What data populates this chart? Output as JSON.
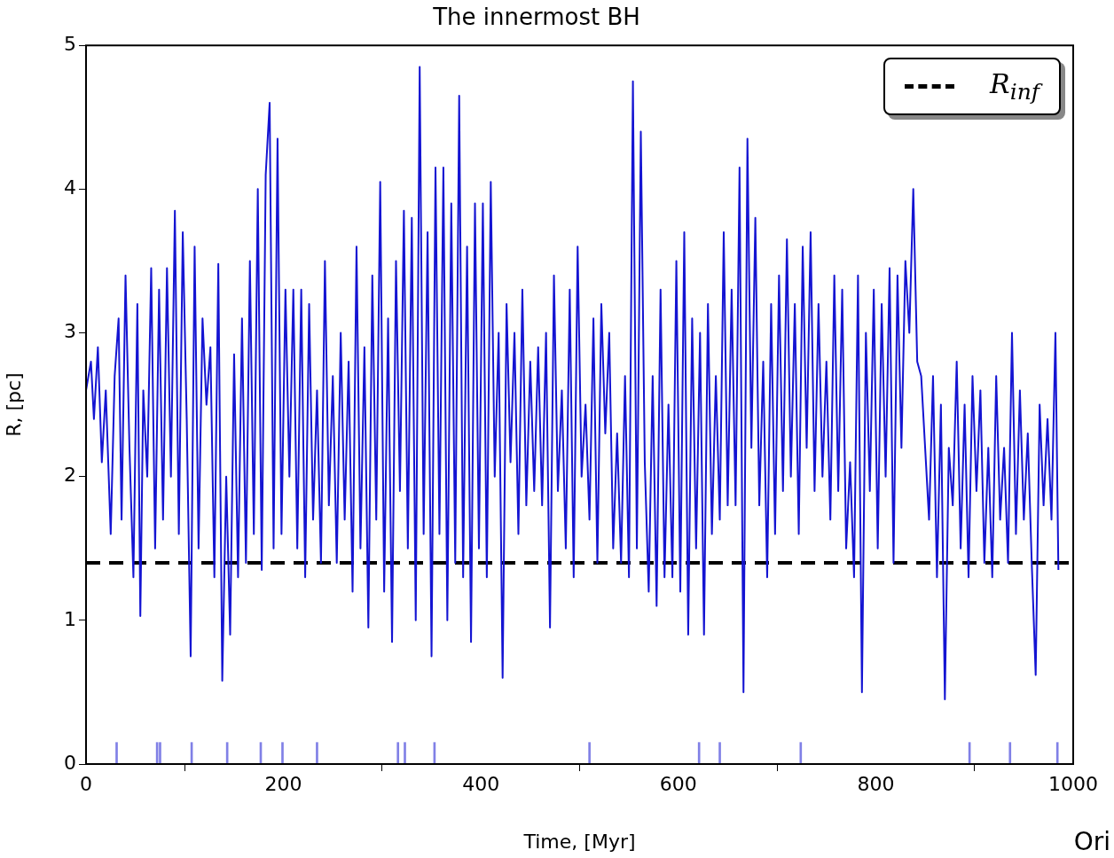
{
  "chart_data": {
    "type": "line",
    "title": "The innermost BH",
    "xlabel": "Time, [Myr]",
    "ylabel": "R, [pc]",
    "xlim": [
      0,
      1000
    ],
    "xticks": [
      0,
      200,
      400,
      600,
      800,
      1000
    ],
    "ylim": [
      0,
      5
    ],
    "yticks": [
      0,
      1,
      2,
      3,
      4,
      5
    ],
    "marker": "none",
    "line_style": "solid",
    "legend": "top right",
    "annotations": [
      "Ori"
    ],
    "ref_lines": [
      {
        "axis": "y",
        "value": 1.4,
        "label": "R$_{inf}$",
        "color": "#000000",
        "line_style": "dashed"
      }
    ],
    "series": [
      {
        "color": "#1414d2",
        "x": [
          0,
          5,
          8,
          12,
          16,
          20,
          25,
          29,
          33,
          36,
          40,
          44,
          48,
          52,
          55,
          58,
          62,
          66,
          70,
          74,
          78,
          82,
          86,
          90,
          94,
          98,
          102,
          106,
          110,
          114,
          118,
          122,
          126,
          130,
          134,
          138,
          142,
          146,
          150,
          154,
          158,
          162,
          166,
          170,
          174,
          178,
          182,
          186,
          190,
          194,
          198,
          202,
          206,
          210,
          214,
          218,
          222,
          226,
          230,
          234,
          238,
          242,
          246,
          250,
          254,
          258,
          262,
          266,
          270,
          274,
          278,
          282,
          286,
          290,
          294,
          298,
          302,
          306,
          310,
          314,
          318,
          322,
          326,
          330,
          334,
          338,
          342,
          346,
          350,
          354,
          358,
          362,
          366,
          370,
          374,
          378,
          382,
          386,
          390,
          394,
          398,
          402,
          406,
          410,
          414,
          418,
          422,
          426,
          430,
          434,
          438,
          442,
          446,
          450,
          454,
          458,
          462,
          466,
          470,
          474,
          478,
          482,
          486,
          490,
          494,
          498,
          502,
          506,
          510,
          514,
          518,
          522,
          526,
          530,
          534,
          538,
          542,
          546,
          550,
          554,
          558,
          562,
          566,
          570,
          574,
          578,
          582,
          586,
          590,
          594,
          598,
          602,
          606,
          610,
          614,
          618,
          622,
          626,
          630,
          634,
          638,
          642,
          646,
          650,
          654,
          658,
          662,
          666,
          670,
          674,
          678,
          682,
          686,
          690,
          694,
          698,
          702,
          706,
          710,
          714,
          718,
          722,
          726,
          730,
          734,
          738,
          742,
          746,
          750,
          754,
          758,
          762,
          766,
          770,
          774,
          778,
          782,
          786,
          790,
          794,
          798,
          802,
          806,
          810,
          814,
          818,
          822,
          826,
          830,
          834,
          838,
          842,
          846,
          850,
          854,
          858,
          862,
          866,
          870,
          874,
          878,
          882,
          886,
          890,
          894,
          898,
          902,
          906,
          910,
          914,
          918,
          922,
          926,
          930,
          934,
          938,
          942,
          946,
          950,
          954,
          958,
          962,
          966,
          970,
          974,
          978,
          982,
          985
        ],
        "values": [
          2.6,
          2.8,
          2.4,
          2.9,
          2.1,
          2.6,
          1.6,
          2.7,
          3.1,
          1.7,
          3.4,
          2.2,
          1.3,
          3.2,
          1.03,
          2.6,
          2.0,
          3.45,
          1.5,
          3.3,
          1.7,
          3.45,
          2.0,
          3.85,
          1.6,
          3.7,
          2.4,
          0.75,
          3.6,
          1.5,
          3.1,
          2.5,
          2.9,
          1.3,
          3.48,
          0.58,
          2.0,
          0.9,
          2.85,
          1.3,
          3.1,
          1.4,
          3.5,
          1.6,
          4.0,
          1.35,
          4.1,
          4.6,
          1.5,
          4.35,
          1.6,
          3.3,
          2.0,
          3.3,
          1.5,
          3.3,
          1.3,
          3.2,
          1.7,
          2.6,
          1.4,
          3.5,
          1.8,
          2.7,
          1.4,
          3.0,
          1.7,
          2.8,
          1.2,
          3.6,
          1.5,
          2.9,
          0.95,
          3.4,
          1.7,
          4.05,
          1.2,
          3.1,
          0.85,
          3.5,
          1.9,
          3.85,
          1.5,
          3.8,
          1.0,
          4.85,
          1.6,
          3.7,
          0.75,
          4.15,
          1.6,
          4.15,
          1.0,
          3.9,
          1.4,
          4.65,
          1.3,
          3.6,
          0.85,
          3.9,
          1.5,
          3.9,
          1.3,
          4.05,
          2.0,
          3.0,
          0.6,
          3.2,
          2.1,
          3.0,
          1.6,
          3.3,
          1.8,
          2.8,
          1.9,
          2.9,
          1.8,
          3.0,
          0.95,
          3.4,
          1.9,
          2.6,
          1.5,
          3.3,
          1.3,
          3.6,
          2.0,
          2.5,
          1.7,
          3.1,
          1.4,
          3.2,
          2.3,
          3.0,
          1.5,
          2.3,
          1.4,
          2.7,
          1.3,
          4.75,
          1.5,
          4.4,
          2.1,
          1.2,
          2.7,
          1.1,
          3.3,
          1.3,
          2.5,
          1.3,
          3.5,
          1.2,
          3.7,
          0.9,
          3.1,
          1.5,
          3.0,
          0.9,
          3.2,
          1.6,
          2.7,
          1.7,
          3.7,
          1.8,
          3.3,
          1.8,
          4.15,
          0.5,
          4.35,
          2.2,
          3.8,
          1.8,
          2.8,
          1.3,
          3.2,
          1.6,
          3.4,
          1.9,
          3.65,
          2.0,
          3.2,
          1.6,
          3.6,
          2.2,
          3.7,
          1.9,
          3.2,
          2.0,
          2.8,
          1.7,
          3.4,
          1.9,
          3.3,
          1.5,
          2.1,
          1.3,
          3.4,
          0.5,
          3.0,
          1.9,
          3.3,
          1.5,
          3.2,
          2.0,
          3.45,
          1.4,
          3.4,
          2.2,
          3.5,
          3.0,
          4.0,
          2.8,
          2.7,
          2.2,
          1.7,
          2.7,
          1.3,
          2.5,
          0.45,
          2.2,
          1.8,
          2.8,
          1.5,
          2.5,
          1.3,
          2.7,
          1.9,
          2.6,
          1.4,
          2.2,
          1.3,
          2.7,
          1.7,
          2.2,
          1.4,
          3.0,
          1.6,
          2.6,
          1.7,
          2.3,
          1.4,
          0.62,
          2.5,
          1.8,
          2.4,
          1.7,
          3.0,
          1.35
        ]
      },
      {
        "type": "bar",
        "color": "#8080e6",
        "x": [
          31,
          72,
          75,
          107,
          143,
          177,
          199,
          234,
          316,
          323,
          353,
          510,
          621,
          642,
          724,
          895,
          936,
          984
        ],
        "values": [
          0.15,
          0.15,
          0.15,
          0.15,
          0.15,
          0.15,
          0.15,
          0.15,
          0.15,
          0.15,
          0.15,
          0.15,
          0.15,
          0.15,
          0.15,
          0.15,
          0.15,
          0.15
        ]
      }
    ]
  }
}
